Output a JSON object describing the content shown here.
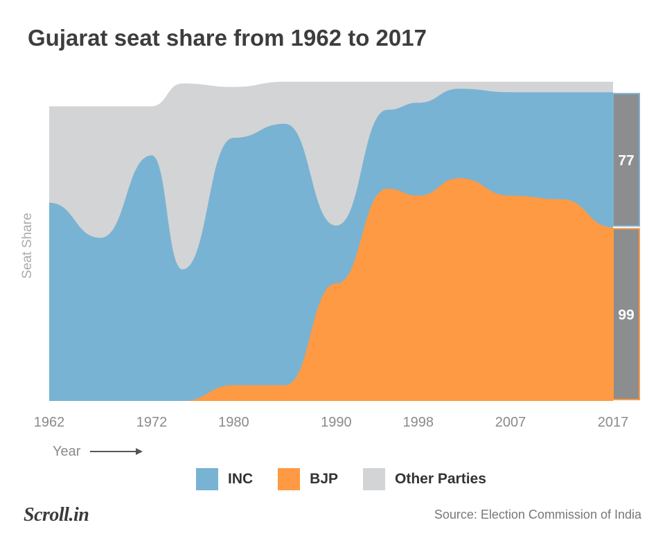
{
  "title": "Gujarat seat share from 1962 to 2017",
  "chart_data": {
    "type": "area",
    "stacked": true,
    "title": "Gujarat seat share from 1962 to 2017",
    "xlabel": "Year",
    "ylabel": "Seat Share",
    "total_seats": 182,
    "x": [
      1962,
      1967,
      1972,
      1975,
      1980,
      1985,
      1990,
      1995,
      1998,
      2002,
      2007,
      2012,
      2017
    ],
    "xticks": [
      "1962",
      "1972",
      "1980",
      "1990",
      "1998",
      "2007",
      "2017"
    ],
    "series": [
      {
        "name": "BJP",
        "color": "#fe9a43",
        "values": [
          0,
          0,
          0,
          0,
          9,
          9,
          67,
          121,
          117,
          127,
          117,
          115,
          99
        ]
      },
      {
        "name": "INC",
        "color": "#79b3d3",
        "values": [
          113,
          93,
          140,
          75,
          141,
          149,
          33,
          45,
          53,
          51,
          59,
          61,
          77
        ]
      },
      {
        "name": "Other Parties",
        "color": "#d3d4d5",
        "values": [
          55,
          75,
          28,
          106,
          29,
          24,
          82,
          16,
          12,
          4,
          6,
          6,
          6
        ]
      }
    ],
    "annotations": [
      {
        "series": "INC",
        "label": "77"
      },
      {
        "series": "BJP",
        "label": "99"
      }
    ]
  },
  "legend": [
    {
      "name": "INC",
      "color": "#79b3d3"
    },
    {
      "name": "BJP",
      "color": "#fe9a43"
    },
    {
      "name": "Other Parties",
      "color": "#d3d4d5"
    }
  ],
  "footer": {
    "logo": "Scroll.in",
    "source": "Source: Election Commission of India"
  }
}
